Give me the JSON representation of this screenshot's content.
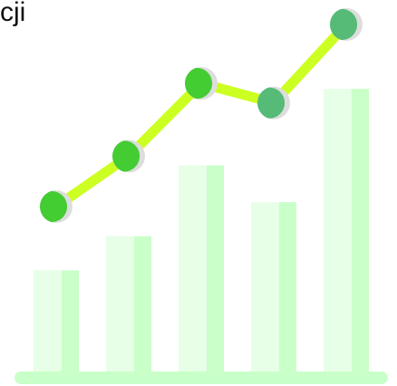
{
  "text": {
    "clipped_caption": "cji"
  },
  "graphic": {
    "icon": "growth-chart-icon",
    "colors": {
      "bar_light": "#e6ffe6",
      "bar_shade": "#c9ffc9",
      "baseline": "#c9ffc9",
      "line": "#ccff22",
      "marker_green": "#44cc33",
      "marker_dark_green": "#55bb77",
      "marker_face": "#dddddd"
    },
    "bars": [
      {
        "value": 0.36
      },
      {
        "value": 0.48
      },
      {
        "value": 0.73
      },
      {
        "value": 0.6
      },
      {
        "value": 1.0
      }
    ],
    "trend": [
      {
        "value": 0.35
      },
      {
        "value": 0.53
      },
      {
        "value": 0.79
      },
      {
        "value": 0.72
      },
      {
        "value": 1.0
      }
    ]
  }
}
